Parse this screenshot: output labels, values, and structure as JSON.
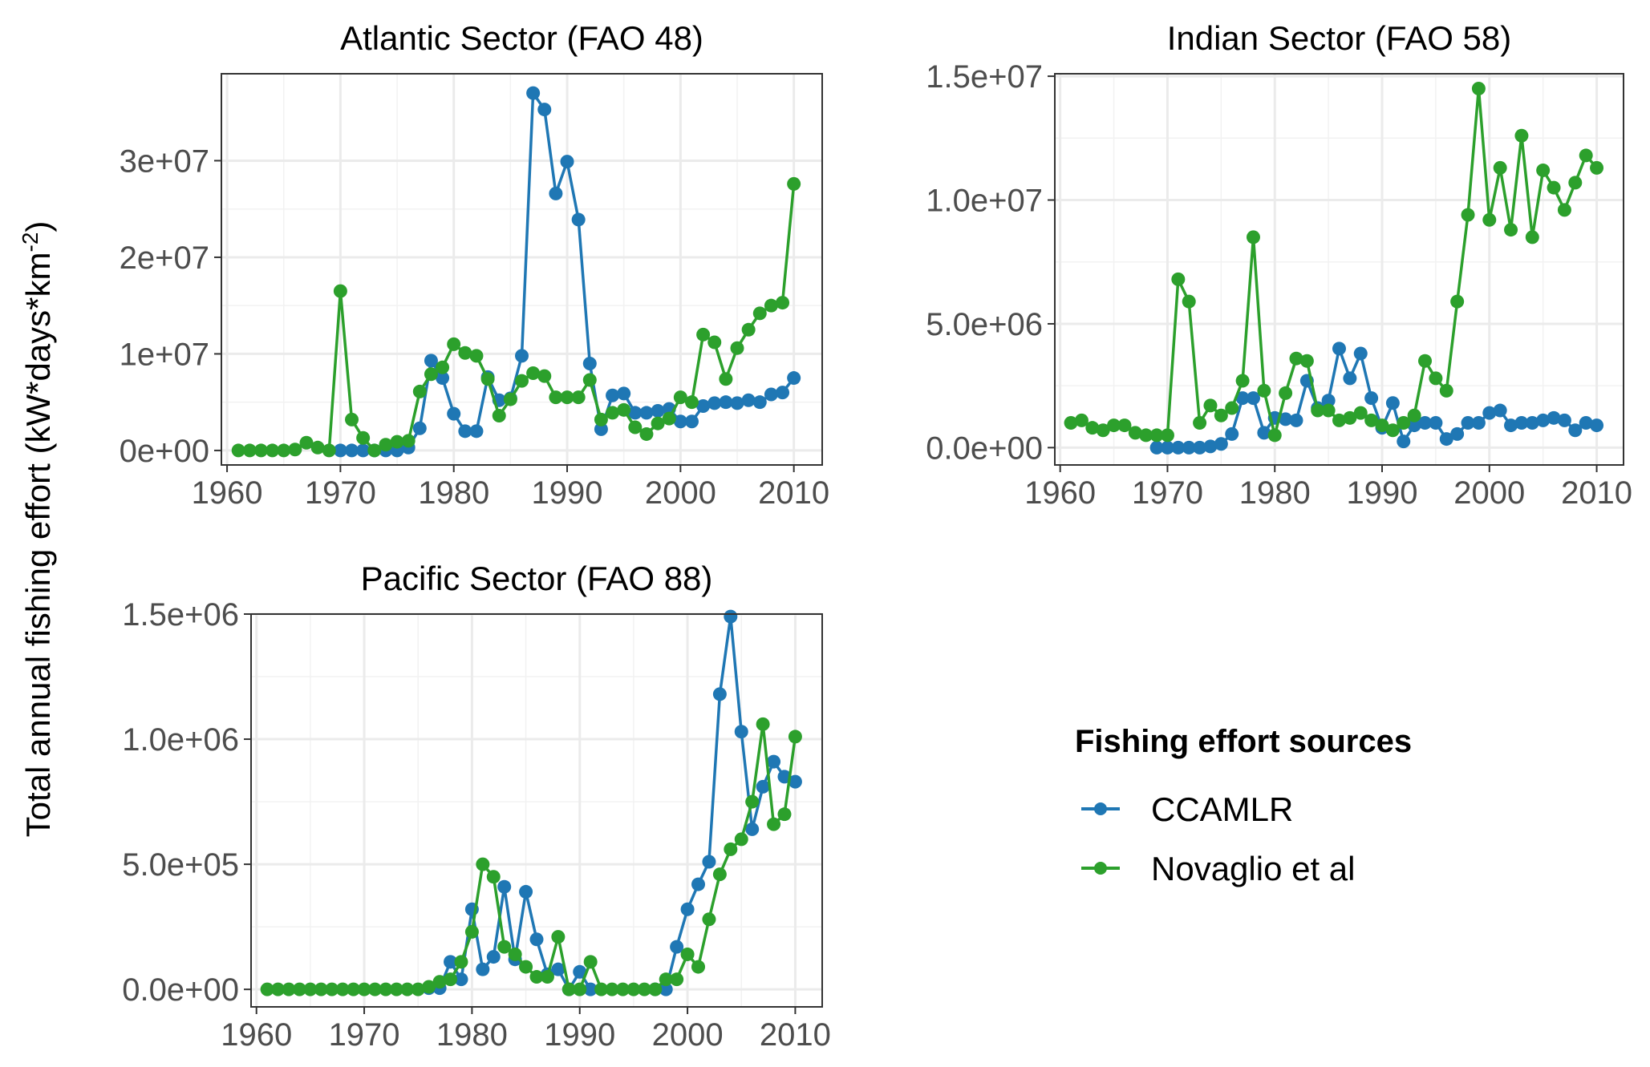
{
  "figure": {
    "ylabel_pre": "Total annual fishing effort (kW*days*km",
    "ylabel_sup": "-2",
    "ylabel_post": ")"
  },
  "colors": {
    "CCAMLR": "#1f77b4",
    "Novaglio et al": "#2ca02c"
  },
  "legend": {
    "title": "Fishing effort sources",
    "entries": [
      {
        "key": "CCAMLR",
        "label": "CCAMLR"
      },
      {
        "key": "Novaglio et al",
        "label": "Novaglio et al"
      }
    ]
  },
  "chart_data": [
    {
      "type": "line",
      "title": "Atlantic Sector (FAO 48)",
      "xlim": [
        1959.5,
        2012.5
      ],
      "ylim": [
        -1500000,
        39000000
      ],
      "xticks": [
        1960,
        1970,
        1980,
        1990,
        2000,
        2010
      ],
      "yticks": [
        0,
        10000000,
        20000000,
        30000000
      ],
      "yticklabels": [
        "0e+00",
        "1e+07",
        "2e+07",
        "3e+07"
      ],
      "series": [
        {
          "name": "CCAMLR",
          "x": [
            1970,
            1971,
            1972,
            1973,
            1974,
            1975,
            1976,
            1977,
            1978,
            1979,
            1980,
            1981,
            1982,
            1983,
            1984,
            1985,
            1986,
            1987,
            1988,
            1989,
            1990,
            1991,
            1992,
            1993,
            1994,
            1995,
            1996,
            1997,
            1998,
            1999,
            2000,
            2001,
            2002,
            2003,
            2004,
            2005,
            2006,
            2007,
            2008,
            2009,
            2010
          ],
          "y": [
            0,
            0,
            0,
            0,
            0,
            0,
            300000,
            2300000,
            9300000,
            7500000,
            3800000,
            2000000,
            2000000,
            7600000,
            5200000,
            5400000,
            9800000,
            37000000,
            35300000,
            26600000,
            29900000,
            23900000,
            9000000,
            2200000,
            5700000,
            5900000,
            3900000,
            3900000,
            4100000,
            4300000,
            3000000,
            3000000,
            4600000,
            4900000,
            5000000,
            4900000,
            5200000,
            5000000,
            5800000,
            6000000,
            7500000
          ]
        },
        {
          "name": "Novaglio et al",
          "x": [
            1961,
            1962,
            1963,
            1964,
            1965,
            1966,
            1967,
            1968,
            1969,
            1970,
            1971,
            1972,
            1973,
            1974,
            1975,
            1976,
            1977,
            1978,
            1979,
            1980,
            1981,
            1982,
            1983,
            1984,
            1985,
            1986,
            1987,
            1988,
            1989,
            1990,
            1991,
            1992,
            1993,
            1994,
            1995,
            1996,
            1997,
            1998,
            1999,
            2000,
            2001,
            2002,
            2003,
            2004,
            2005,
            2006,
            2007,
            2008,
            2009,
            2010
          ],
          "y": [
            0,
            0,
            0,
            0,
            0,
            100000,
            800000,
            300000,
            0,
            16500000,
            3200000,
            1300000,
            0,
            600000,
            900000,
            1000000,
            6100000,
            7900000,
            8600000,
            11000000,
            10100000,
            9800000,
            7400000,
            3600000,
            5300000,
            7200000,
            8000000,
            7700000,
            5500000,
            5500000,
            5500000,
            7300000,
            3200000,
            3900000,
            4200000,
            2400000,
            1700000,
            2800000,
            3300000,
            5500000,
            5000000,
            12000000,
            11200000,
            7400000,
            10600000,
            12500000,
            14200000,
            15000000,
            15300000,
            27600000
          ]
        }
      ]
    },
    {
      "type": "line",
      "title": "Indian Sector (FAO 58)",
      "xlim": [
        1959.5,
        2012.5
      ],
      "ylim": [
        -700000,
        15100000
      ],
      "xticks": [
        1960,
        1970,
        1980,
        1990,
        2000,
        2010
      ],
      "yticks": [
        0,
        5000000,
        10000000,
        15000000
      ],
      "yticklabels": [
        "0.0e+00",
        "5.0e+06",
        "1.0e+07",
        "1.5e+07"
      ],
      "series": [
        {
          "name": "CCAMLR",
          "x": [
            1969,
            1970,
            1971,
            1972,
            1973,
            1974,
            1975,
            1976,
            1977,
            1978,
            1979,
            1980,
            1981,
            1982,
            1983,
            1984,
            1985,
            1986,
            1987,
            1988,
            1989,
            1990,
            1991,
            1992,
            1993,
            1994,
            1995,
            1996,
            1997,
            1998,
            1999,
            2000,
            2001,
            2002,
            2003,
            2004,
            2005,
            2006,
            2007,
            2008,
            2009,
            2010
          ],
          "y": [
            0,
            0,
            0,
            0,
            0,
            50000,
            150000,
            550000,
            2000000,
            2000000,
            600000,
            1200000,
            1150000,
            1100000,
            2700000,
            1600000,
            1900000,
            4000000,
            2800000,
            3800000,
            2000000,
            800000,
            1800000,
            250000,
            900000,
            1000000,
            1000000,
            350000,
            550000,
            1000000,
            1000000,
            1400000,
            1500000,
            900000,
            1000000,
            1000000,
            1100000,
            1200000,
            1100000,
            700000,
            1000000,
            900000
          ]
        },
        {
          "name": "Novaglio et al",
          "x": [
            1961,
            1962,
            1963,
            1964,
            1965,
            1966,
            1967,
            1968,
            1969,
            1970,
            1971,
            1972,
            1973,
            1974,
            1975,
            1976,
            1977,
            1978,
            1979,
            1980,
            1981,
            1982,
            1983,
            1984,
            1985,
            1986,
            1987,
            1988,
            1989,
            1990,
            1991,
            1992,
            1993,
            1994,
            1995,
            1996,
            1997,
            1998,
            1999,
            2000,
            2001,
            2002,
            2003,
            2004,
            2005,
            2006,
            2007,
            2008,
            2009,
            2010
          ],
          "y": [
            1000000,
            1100000,
            800000,
            700000,
            900000,
            900000,
            600000,
            500000,
            500000,
            500000,
            6800000,
            5900000,
            1000000,
            1700000,
            1300000,
            1600000,
            2700000,
            8500000,
            2300000,
            500000,
            2200000,
            3600000,
            3500000,
            1500000,
            1500000,
            1100000,
            1200000,
            1400000,
            1100000,
            900000,
            700000,
            1000000,
            1300000,
            3500000,
            2800000,
            2300000,
            5900000,
            9400000,
            14500000,
            9200000,
            11300000,
            8800000,
            12600000,
            8500000,
            11200000,
            10500000,
            9600000,
            10700000,
            11800000,
            11300000
          ]
        }
      ]
    },
    {
      "type": "line",
      "title": "Pacific Sector (FAO 88)",
      "xlim": [
        1959.5,
        2012.5
      ],
      "ylim": [
        -70000,
        1500000
      ],
      "xticks": [
        1960,
        1970,
        1980,
        1990,
        2000,
        2010
      ],
      "yticks": [
        0,
        500000,
        1000000,
        1500000
      ],
      "yticklabels": [
        "0.0e+00",
        "5.0e+05",
        "1.0e+06",
        "1.5e+06"
      ],
      "series": [
        {
          "name": "CCAMLR",
          "x": [
            1976,
            1977,
            1978,
            1979,
            1980,
            1981,
            1982,
            1983,
            1984,
            1985,
            1986,
            1987,
            1988,
            1989,
            1990,
            1991,
            1997,
            1998,
            1999,
            2000,
            2001,
            2002,
            2003,
            2004,
            2005,
            2006,
            2007,
            2008,
            2009,
            2010
          ],
          "y": [
            5000,
            5000,
            110000,
            40000,
            320000,
            80000,
            130000,
            410000,
            120000,
            390000,
            200000,
            60000,
            80000,
            0,
            70000,
            0,
            0,
            0,
            170000,
            320000,
            420000,
            510000,
            1180000,
            1490000,
            1030000,
            640000,
            810000,
            910000,
            850000,
            830000
          ]
        },
        {
          "name": "Novaglio et al",
          "x": [
            1961,
            1962,
            1963,
            1964,
            1965,
            1966,
            1967,
            1968,
            1969,
            1970,
            1971,
            1972,
            1973,
            1974,
            1975,
            1976,
            1977,
            1978,
            1979,
            1980,
            1981,
            1982,
            1983,
            1984,
            1985,
            1986,
            1987,
            1988,
            1989,
            1990,
            1991,
            1992,
            1993,
            1994,
            1995,
            1996,
            1997,
            1998,
            1999,
            2000,
            2001,
            2002,
            2003,
            2004,
            2005,
            2006,
            2007,
            2008,
            2009,
            2010
          ],
          "y": [
            0,
            0,
            0,
            0,
            0,
            0,
            0,
            0,
            0,
            0,
            0,
            0,
            0,
            0,
            0,
            10000,
            30000,
            40000,
            110000,
            230000,
            500000,
            450000,
            170000,
            140000,
            90000,
            50000,
            50000,
            210000,
            0,
            0,
            110000,
            0,
            0,
            0,
            0,
            0,
            0,
            40000,
            40000,
            140000,
            90000,
            280000,
            460000,
            560000,
            600000,
            750000,
            1060000,
            660000,
            700000,
            1010000
          ]
        }
      ]
    }
  ]
}
